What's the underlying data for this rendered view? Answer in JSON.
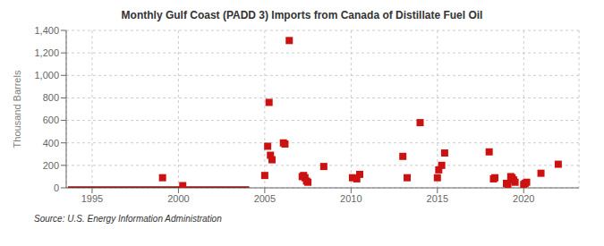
{
  "chart_data": {
    "type": "scatter",
    "title": "Monthly Gulf Coast (PADD 3) Imports from Canada of Distillate Fuel Oil",
    "ylabel": "Thousand Barrels",
    "annotations": [
      "Source: U.S. Energy Information Administration"
    ],
    "xlim": [
      1993.5,
      2023.2
    ],
    "xticks": [
      1995,
      2000,
      2005,
      2010,
      2015,
      2020
    ],
    "ylim": [
      0,
      1400
    ],
    "yticks": [
      0,
      200,
      400,
      600,
      800,
      {
        "value": 1000,
        "label": "1,000"
      },
      {
        "value": 1200,
        "label": "1,200"
      },
      {
        "value": 1400,
        "label": "1,400"
      }
    ],
    "grid": true,
    "series": [
      {
        "type": "line",
        "color": "#8b1a1a",
        "x": [
          1993.6,
          2004.1
        ],
        "values": [
          0,
          0
        ]
      },
      {
        "type": "scatter",
        "color": "#cc1111",
        "marker": "square",
        "x": [
          1999.08,
          2000.25,
          2005.0,
          2005.17,
          2005.25,
          2005.33,
          2005.42,
          2006.08,
          2006.17,
          2006.42,
          2007.17,
          2007.25,
          2007.33,
          2007.42,
          2007.5,
          2008.42,
          2010.08,
          2010.33,
          2010.5,
          2013.0,
          2013.25,
          2014.0,
          2015.0,
          2015.08,
          2015.25,
          2015.42,
          2018.0,
          2018.25,
          2018.33,
          2019.0,
          2019.08,
          2019.25,
          2019.33,
          2019.42,
          2019.5,
          2020.0,
          2020.08,
          2020.17,
          2021.0,
          2022.0
        ],
        "values": [
          90,
          20,
          110,
          370,
          760,
          290,
          250,
          400,
          390,
          1310,
          100,
          110,
          90,
          60,
          50,
          190,
          90,
          80,
          120,
          280,
          90,
          580,
          90,
          160,
          200,
          310,
          320,
          80,
          90,
          40,
          30,
          100,
          90,
          70,
          50,
          30,
          40,
          50,
          130,
          210
        ]
      }
    ]
  }
}
